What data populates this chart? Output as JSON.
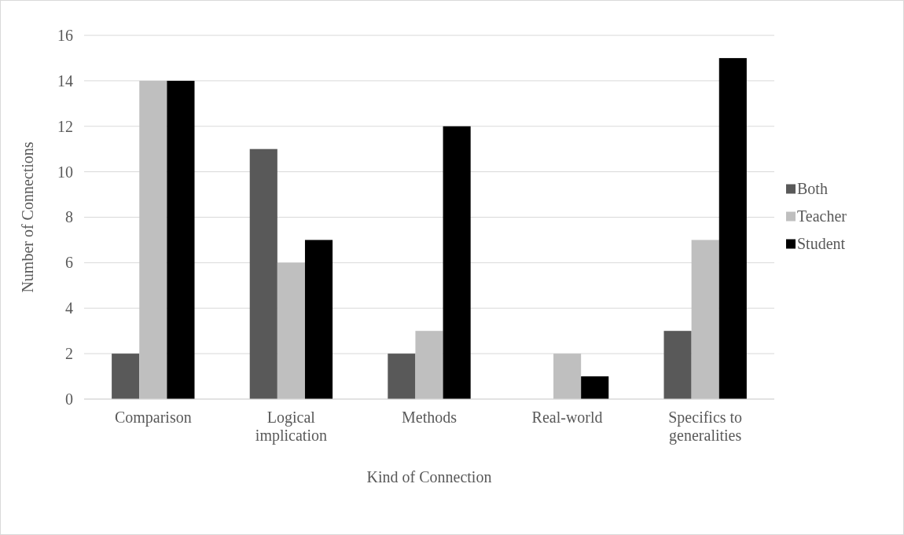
{
  "chart_data": {
    "type": "bar",
    "xlabel": "Kind of Connection",
    "ylabel": "Number of Connections",
    "categories": [
      "Comparison",
      "Logical implication",
      "Methods",
      "Real-world",
      "Specifics to generalities"
    ],
    "series": [
      {
        "name": "Both",
        "color": "#595959",
        "values": [
          2,
          11,
          2,
          0,
          3
        ]
      },
      {
        "name": "Teacher",
        "color": "#bfbfbf",
        "values": [
          14,
          6,
          3,
          2,
          7
        ]
      },
      {
        "name": "Student",
        "color": "#000000",
        "values": [
          14,
          7,
          12,
          1,
          15
        ]
      }
    ],
    "ylim": [
      0,
      16
    ],
    "yticks": [
      0,
      2,
      4,
      6,
      8,
      10,
      12,
      14,
      16
    ],
    "grid": "y",
    "legend": "right"
  }
}
